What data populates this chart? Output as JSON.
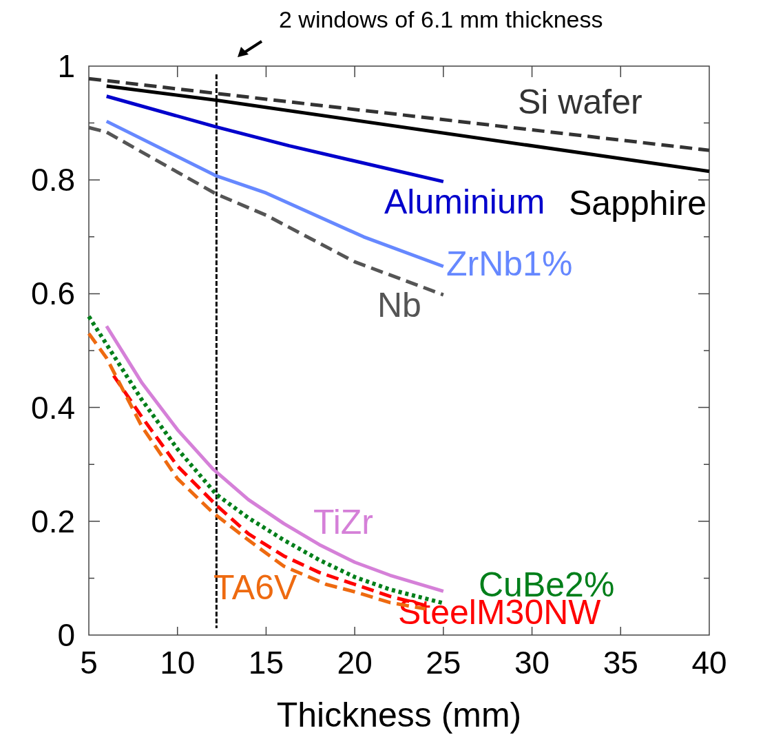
{
  "chart_data": {
    "type": "line",
    "xlabel": "Thickness (mm)",
    "xlim": [
      5,
      40
    ],
    "xticks": [
      5,
      10,
      15,
      20,
      25,
      30,
      35,
      40
    ],
    "ylim": [
      0,
      1
    ],
    "yticks": [
      0,
      {
        "value": 0.1,
        "label": null
      },
      0.2,
      {
        "value": 0.3,
        "label": null
      },
      0.4,
      {
        "value": 0.5,
        "label": null
      },
      0.6,
      {
        "value": 0.7,
        "label": null
      },
      0.8,
      {
        "value": 0.9,
        "label": null
      },
      1
    ],
    "grid": false,
    "marker": "none",
    "ref_lines": [
      {
        "axis": "x",
        "value": 12.2,
        "color": "#000000",
        "line_style": "dashed"
      }
    ],
    "annotations": [
      "2 windows of 6.1 mm thickness"
    ],
    "series": [
      {
        "name": "Si wafer",
        "color": "#333333",
        "line_style": "dashed",
        "x": [
          5,
          12.2,
          40
        ],
        "values": [
          0.978,
          0.952,
          0.852
        ]
      },
      {
        "name": "Sapphire",
        "color": "#000000",
        "line_style": "solid",
        "x": [
          6,
          12.2,
          40
        ],
        "values": [
          0.965,
          0.94,
          0.815
        ]
      },
      {
        "name": "Aluminium",
        "color": "#0000cc",
        "line_style": "solid",
        "x": [
          6,
          12.2,
          16.3,
          25
        ],
        "values": [
          0.947,
          0.893,
          0.86,
          0.797
        ]
      },
      {
        "name": "ZrNb1%",
        "color": "#6688ff",
        "line_style": "solid",
        "x": [
          6,
          12.2,
          15,
          20.5,
          25
        ],
        "values": [
          0.903,
          0.807,
          0.777,
          0.7,
          0.648
        ]
      },
      {
        "name": "Nb",
        "color": "#555555",
        "line_style": "dashed",
        "x": [
          5,
          6,
          12.2,
          15,
          20,
          25
        ],
        "values": [
          0.892,
          0.884,
          0.775,
          0.738,
          0.656,
          0.598
        ]
      },
      {
        "name": "TiZr",
        "color": "#d580d8",
        "line_style": "solid",
        "x": [
          6,
          8,
          10,
          12,
          14,
          16,
          18,
          20,
          22,
          25
        ],
        "values": [
          0.543,
          0.443,
          0.361,
          0.292,
          0.238,
          0.196,
          0.159,
          0.128,
          0.105,
          0.077
        ]
      },
      {
        "name": "CuBe2%",
        "color": "#007f1a",
        "line_style": "dotted",
        "x": [
          5,
          8,
          10,
          12.2,
          14,
          16,
          18,
          20,
          22,
          25
        ],
        "values": [
          0.56,
          0.413,
          0.327,
          0.247,
          0.206,
          0.167,
          0.132,
          0.102,
          0.08,
          0.056
        ]
      },
      {
        "name": "SteelM30NW",
        "color": "#ff0000",
        "line_style": "dashed",
        "x": [
          6.4,
          8,
          10,
          12.2,
          14,
          16,
          18,
          20,
          22,
          24
        ],
        "values": [
          0.456,
          0.383,
          0.297,
          0.228,
          0.178,
          0.139,
          0.11,
          0.089,
          0.068,
          0.052
        ]
      },
      {
        "name": "TA6V",
        "color": "#ee6a10",
        "line_style": "dashed",
        "x": [
          5,
          6,
          8,
          10,
          12,
          14,
          16,
          18.4,
          20,
          22,
          24
        ],
        "values": [
          0.53,
          0.487,
          0.366,
          0.275,
          0.215,
          0.167,
          0.121,
          0.089,
          0.076,
          0.057,
          0.046
        ]
      }
    ]
  }
}
